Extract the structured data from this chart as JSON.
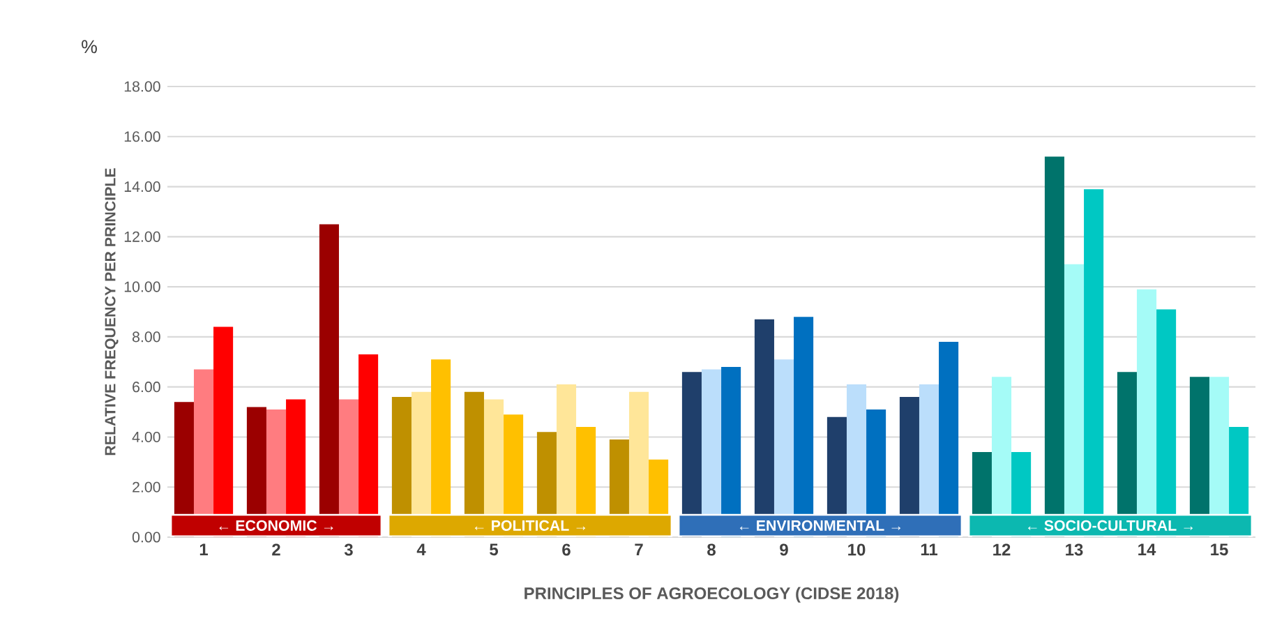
{
  "chart_data": {
    "type": "bar",
    "xlabel": "PRINCIPLES OF AGROECOLOGY (CIDSE 2018)",
    "ylabel": "RELATIVE FREQUENCY PER PRINCIPLE",
    "annotations": [
      "%"
    ],
    "categories": [
      "1",
      "2",
      "3",
      "4",
      "5",
      "6",
      "7",
      "8",
      "9",
      "10",
      "11",
      "12",
      "13",
      "14",
      "15"
    ],
    "series": [
      {
        "colors": [
          "#9b0000",
          "#9b0000",
          "#9b0000",
          "#bf9000",
          "#bf9000",
          "#bf9000",
          "#bf9000",
          "#1f3f6b",
          "#1f3f6b",
          "#1f3f6b",
          "#1f3f6b",
          "#00736b",
          "#00736b",
          "#00736b",
          "#00736b"
        ],
        "values": [
          5.4,
          5.2,
          12.5,
          5.6,
          5.8,
          4.2,
          3.9,
          6.6,
          8.7,
          4.8,
          5.6,
          3.4,
          15.2,
          6.6,
          6.4
        ]
      },
      {
        "colors": [
          "#ff7c80",
          "#ff7c80",
          "#ff7c80",
          "#ffe699",
          "#ffe699",
          "#ffe699",
          "#ffe699",
          "#bbdefb",
          "#bbdefb",
          "#bbdefb",
          "#bbdefb",
          "#a5fbf7",
          "#a5fbf7",
          "#a5fbf7",
          "#a5fbf7"
        ],
        "values": [
          6.7,
          5.1,
          5.5,
          5.8,
          5.5,
          6.1,
          5.8,
          6.7,
          7.1,
          6.1,
          6.1,
          6.4,
          10.9,
          9.9,
          6.4
        ]
      },
      {
        "colors": [
          "#ff0000",
          "#ff0000",
          "#ff0000",
          "#ffc000",
          "#ffc000",
          "#ffc000",
          "#ffc000",
          "#0070c0",
          "#0070c0",
          "#0070c0",
          "#0070c0",
          "#00c8c3",
          "#00c8c3",
          "#00c8c3",
          "#00c8c3"
        ],
        "values": [
          8.4,
          5.5,
          7.3,
          7.1,
          4.9,
          4.4,
          3.1,
          6.8,
          8.8,
          5.1,
          7.8,
          3.4,
          13.9,
          9.1,
          4.4
        ]
      }
    ],
    "ylim": [
      0,
      18
    ],
    "yticks": [
      {
        "value": 0,
        "label": "0.00"
      },
      {
        "value": 2,
        "label": "2.00"
      },
      {
        "value": 4,
        "label": "4.00"
      },
      {
        "value": 6,
        "label": "6.00"
      },
      {
        "value": 8,
        "label": "8.00"
      },
      {
        "value": 10,
        "label": "10.00"
      },
      {
        "value": 12,
        "label": "12.00"
      },
      {
        "value": 14,
        "label": "14.00"
      },
      {
        "value": 16,
        "label": "16.00"
      },
      {
        "value": 18,
        "label": "18.00"
      }
    ],
    "grid": "y",
    "bands": [
      {
        "axis": "x",
        "from": "1",
        "to": "3",
        "label": "← ECONOMIC →",
        "color": "#c00000"
      },
      {
        "axis": "x",
        "from": "4",
        "to": "7",
        "label": "← POLITICAL →",
        "color": "#dda800"
      },
      {
        "axis": "x",
        "from": "8",
        "to": "11",
        "label": "← ENVIRONMENTAL →",
        "color": "#2f6fb8"
      },
      {
        "axis": "x",
        "from": "12",
        "to": "15",
        "label": "← SOCIO-CULTURAL →",
        "color": "#0cb8b0"
      }
    ]
  }
}
